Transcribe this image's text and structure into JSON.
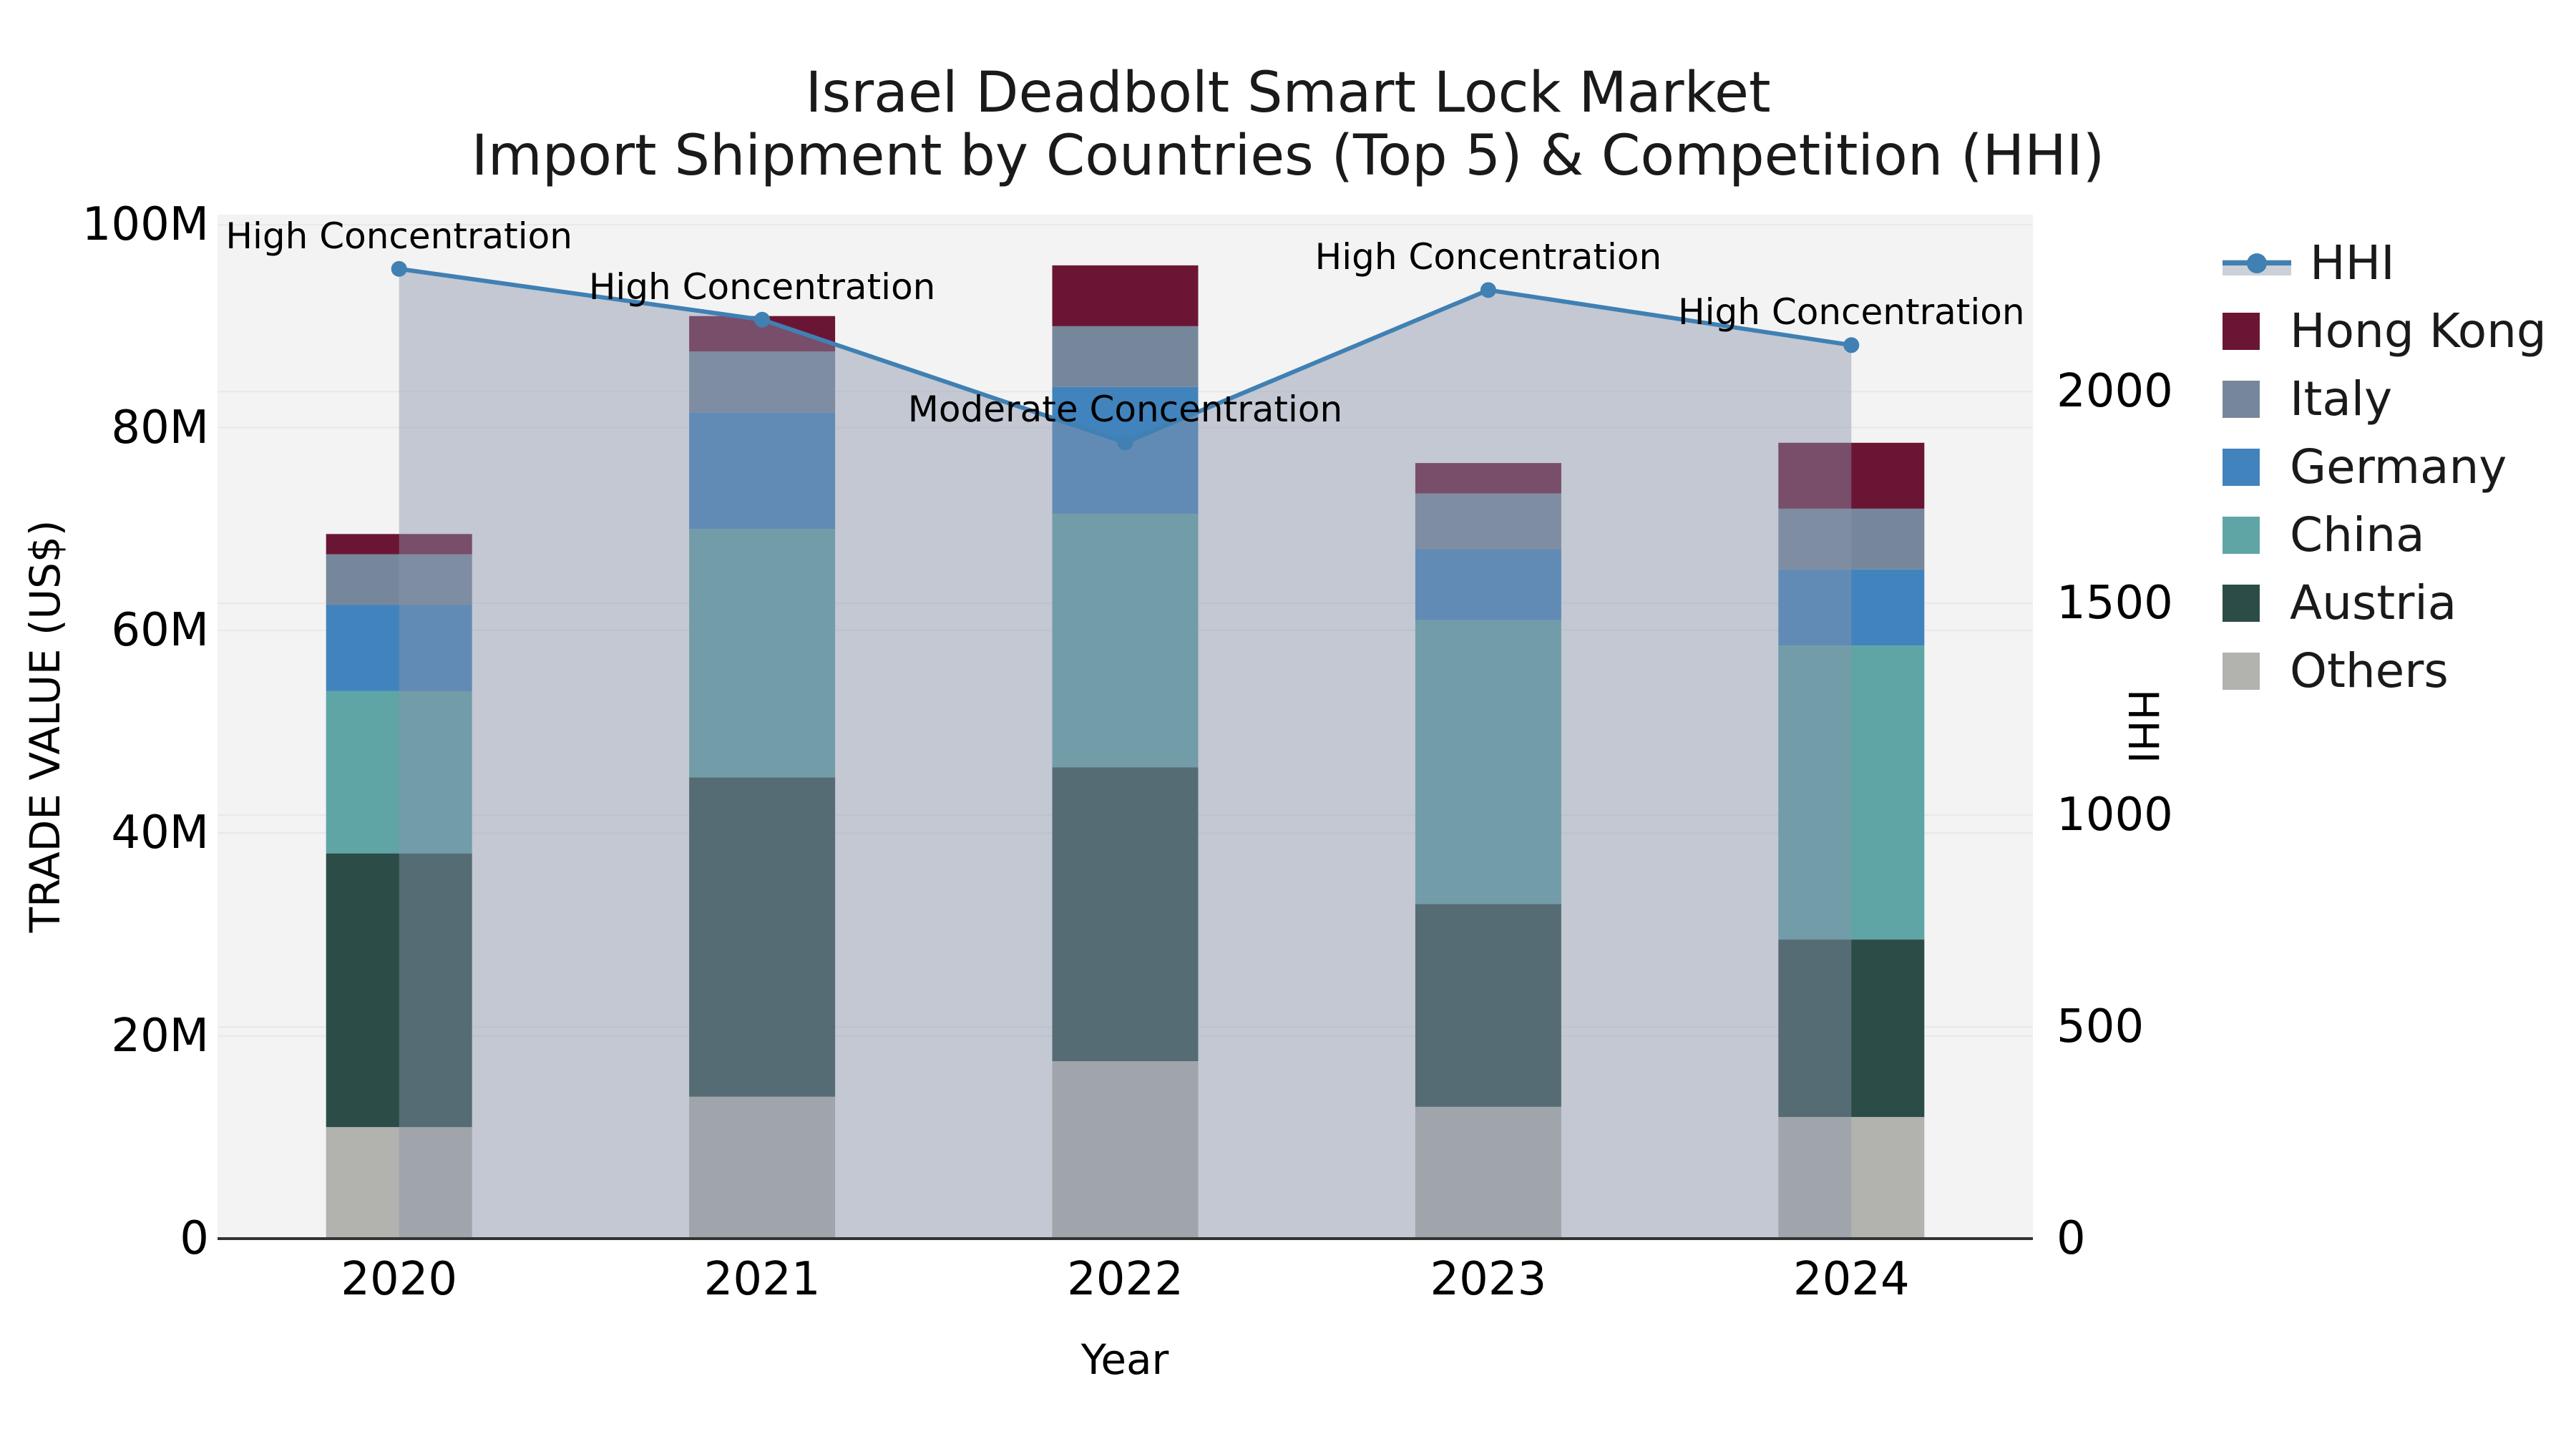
{
  "title": {
    "line1": "Israel Deadbolt Smart Lock Market",
    "line2": "Import Shipment by Countries (Top 5) & Competition (HHI)"
  },
  "axes": {
    "left": {
      "title": "TRADE VALUE (US$)",
      "tick_labels": [
        "0",
        "20M",
        "40M",
        "60M",
        "80M",
        "100M"
      ],
      "tick_values": [
        0,
        20,
        40,
        60,
        80,
        100
      ]
    },
    "right": {
      "title": "HHI",
      "tick_labels": [
        "0",
        "500",
        "1000",
        "1500",
        "2000"
      ],
      "tick_values": [
        0,
        500,
        1000,
        1500,
        2000
      ]
    },
    "x": {
      "title": "Year",
      "tick_labels": [
        "2020",
        "2021",
        "2022",
        "2023",
        "2024"
      ]
    }
  },
  "chart_data": {
    "type": "bar",
    "subtype": "stacked-bars-with-line-area",
    "categories": [
      "2020",
      "2021",
      "2022",
      "2023",
      "2024"
    ],
    "unit": "Million US$",
    "series": [
      {
        "name": "Others",
        "color": "#B2B3AE",
        "values": [
          11,
          14,
          17.5,
          13,
          12
        ]
      },
      {
        "name": "Austria",
        "color": "#2C4C48",
        "values": [
          27,
          31.5,
          29,
          20,
          17.5
        ]
      },
      {
        "name": "China",
        "color": "#5FA5A6",
        "values": [
          16,
          24.5,
          25,
          28,
          29
        ]
      },
      {
        "name": "Germany",
        "color": "#4183BD",
        "values": [
          8.5,
          11.5,
          12.5,
          7,
          7.5
        ]
      },
      {
        "name": "Italy",
        "color": "#76879B",
        "values": [
          5,
          6,
          6,
          5.5,
          6
        ]
      },
      {
        "name": "Hong Kong",
        "color": "#6B1535",
        "values": [
          2,
          3.5,
          6,
          3,
          6.5
        ]
      }
    ],
    "bar_totals": [
      69.5,
      91,
      96,
      76.5,
      78.5
    ],
    "line": {
      "name": "HHI",
      "color": "#4080B3",
      "area_fill": "rgba(138,148,170,0.45)",
      "values": [
        2290,
        2170,
        1880,
        2240,
        2110
      ]
    },
    "annotations": [
      {
        "text": "High Concentration",
        "category": "2020"
      },
      {
        "text": "High Concentration",
        "category": "2021"
      },
      {
        "text": "Moderate Concentration",
        "category": "2022"
      },
      {
        "text": "High Concentration",
        "category": "2023"
      },
      {
        "text": "High Concentration",
        "category": "2024"
      }
    ],
    "title": "Israel Deadbolt Smart Lock Market — Import Shipment by Countries (Top 5) & Competition (HHI)",
    "xlabel": "Year",
    "ylabel": "TRADE VALUE (US$)",
    "y2label": "HHI",
    "ylim": [
      0,
      101
    ],
    "y2lim": [
      0,
      2418
    ],
    "grid": true,
    "legend_position": "right"
  },
  "legend": {
    "items": [
      {
        "label": "HHI",
        "type": "line",
        "color": "#4080B3"
      },
      {
        "label": "Hong Kong",
        "type": "square",
        "color": "#6B1535"
      },
      {
        "label": "Italy",
        "type": "square",
        "color": "#76879B"
      },
      {
        "label": "Germany",
        "type": "square",
        "color": "#4183BD"
      },
      {
        "label": "China",
        "type": "square",
        "color": "#5FA5A6"
      },
      {
        "label": "Austria",
        "type": "square",
        "color": "#2C4C48"
      },
      {
        "label": "Others",
        "type": "square",
        "color": "#B2B3AE"
      }
    ]
  },
  "colors": {
    "plot_bg": "#F3F3F4",
    "grid": "#E8E8EA",
    "axis_line": "#333333",
    "text": "#000000"
  }
}
